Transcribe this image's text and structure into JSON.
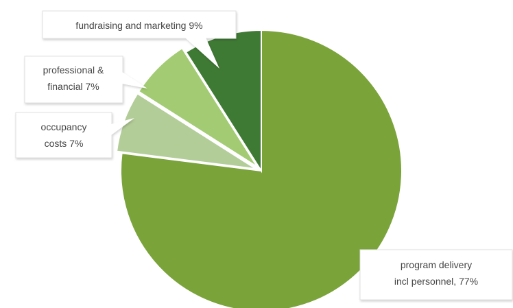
{
  "chart_data": {
    "type": "pie",
    "title": "",
    "slices": [
      {
        "category": "program delivery incl personnel",
        "value": 77,
        "color": "#7aa33a",
        "label_lines": [
          "program delivery",
          "incl personnel, 77%"
        ]
      },
      {
        "category": "occupancy costs",
        "value": 7,
        "color": "#b3cd98",
        "label_lines": [
          "occupancy",
          "costs  7%"
        ]
      },
      {
        "category": "professional & financial",
        "value": 7,
        "color": "#a3cb73",
        "label_lines": [
          "professional &",
          "financial  7%"
        ]
      },
      {
        "category": "fundraising and marketing",
        "value": 9,
        "color": "#3f7a34",
        "label_lines": [
          "fundraising and marketing 9%"
        ]
      }
    ],
    "start_angle_deg": 0,
    "direction": "clockwise",
    "legend": "none",
    "data_labels": "callouts"
  }
}
